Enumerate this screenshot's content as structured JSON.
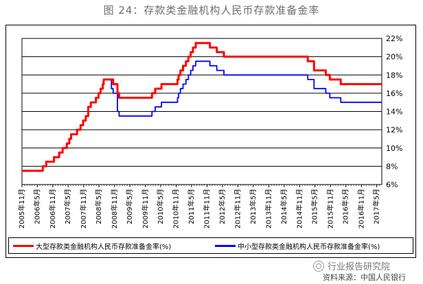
{
  "figure_title": "图 24：存款类金融机构人民币存款准备金率",
  "source_note": "资料来源：中国人民银行",
  "watermark": "行业报告研究院",
  "chart_data": {
    "type": "line",
    "xlabel": "",
    "ylabel": "",
    "ylim": [
      6,
      22
    ],
    "yticks": [
      "6%",
      "8%",
      "10%",
      "12%",
      "14%",
      "16%",
      "18%",
      "20%",
      "22%"
    ],
    "xticks": [
      "2005年11月",
      "2006年5月",
      "2006年11月",
      "2007年5月",
      "2007年11月",
      "2008年5月",
      "2008年11月",
      "2009年5月",
      "2009年11月",
      "2010年5月",
      "2010年11月",
      "2011年5月",
      "2011年11月",
      "2012年5月",
      "2012年11月",
      "2013年5月",
      "2013年11月",
      "2014年5月",
      "2014年11月",
      "2015年5月",
      "2015年11月",
      "2016年5月",
      "2016年11月",
      "2017年5月"
    ],
    "grid": true,
    "legend_position": "bottom",
    "series": [
      {
        "name": "大型存款类金融机构人民币存款准备金率(%)",
        "color": "#ff0000",
        "points": [
          [
            "2005-11-01",
            7.5
          ],
          [
            "2006-07-05",
            8.0
          ],
          [
            "2006-08-15",
            8.5
          ],
          [
            "2006-11-15",
            9.0
          ],
          [
            "2007-01-15",
            9.5
          ],
          [
            "2007-02-25",
            10.0
          ],
          [
            "2007-04-16",
            10.5
          ],
          [
            "2007-05-15",
            11.0
          ],
          [
            "2007-06-05",
            11.5
          ],
          [
            "2007-08-15",
            12.0
          ],
          [
            "2007-09-25",
            12.5
          ],
          [
            "2007-10-25",
            13.0
          ],
          [
            "2007-11-26",
            13.5
          ],
          [
            "2007-12-25",
            14.5
          ],
          [
            "2008-01-25",
            15.0
          ],
          [
            "2008-03-25",
            15.5
          ],
          [
            "2008-04-25",
            16.0
          ],
          [
            "2008-05-20",
            16.5
          ],
          [
            "2008-06-15",
            17.0
          ],
          [
            "2008-06-25",
            17.5
          ],
          [
            "2008-10-15",
            17.0
          ],
          [
            "2008-12-05",
            16.0
          ],
          [
            "2008-12-25",
            15.5
          ],
          [
            "2010-01-18",
            16.0
          ],
          [
            "2010-02-25",
            16.5
          ],
          [
            "2010-05-10",
            17.0
          ],
          [
            "2010-11-16",
            17.5
          ],
          [
            "2010-11-29",
            18.0
          ],
          [
            "2010-12-20",
            18.5
          ],
          [
            "2011-01-20",
            19.0
          ],
          [
            "2011-02-24",
            19.5
          ],
          [
            "2011-03-25",
            20.0
          ],
          [
            "2011-04-21",
            20.5
          ],
          [
            "2011-05-18",
            21.0
          ],
          [
            "2011-06-20",
            21.5
          ],
          [
            "2011-12-05",
            21.0
          ],
          [
            "2012-02-24",
            20.5
          ],
          [
            "2012-05-18",
            20.0
          ],
          [
            "2015-02-05",
            19.5
          ],
          [
            "2015-04-20",
            18.5
          ],
          [
            "2015-09-06",
            18.0
          ],
          [
            "2015-10-24",
            17.5
          ],
          [
            "2016-03-01",
            17.0
          ],
          [
            "2017-06-30",
            17.0
          ]
        ]
      },
      {
        "name": "中小型存款类金融机构人民币存款准备金率(%)",
        "color": "#0000ff",
        "points": [
          [
            "2005-11-01",
            7.5
          ],
          [
            "2006-07-05",
            8.0
          ],
          [
            "2006-08-15",
            8.5
          ],
          [
            "2006-11-15",
            9.0
          ],
          [
            "2007-01-15",
            9.5
          ],
          [
            "2007-02-25",
            10.0
          ],
          [
            "2007-04-16",
            10.5
          ],
          [
            "2007-05-15",
            11.0
          ],
          [
            "2007-06-05",
            11.5
          ],
          [
            "2007-08-15",
            12.0
          ],
          [
            "2007-09-25",
            12.5
          ],
          [
            "2007-10-25",
            13.0
          ],
          [
            "2007-11-26",
            13.5
          ],
          [
            "2007-12-25",
            14.5
          ],
          [
            "2008-01-25",
            15.0
          ],
          [
            "2008-03-25",
            15.5
          ],
          [
            "2008-04-25",
            16.0
          ],
          [
            "2008-05-20",
            16.5
          ],
          [
            "2008-06-15",
            17.0
          ],
          [
            "2008-06-25",
            17.5
          ],
          [
            "2008-09-25",
            16.5
          ],
          [
            "2008-10-15",
            16.0
          ],
          [
            "2008-12-05",
            14.0
          ],
          [
            "2008-12-25",
            13.5
          ],
          [
            "2010-01-18",
            14.0
          ],
          [
            "2010-02-25",
            14.5
          ],
          [
            "2010-05-10",
            15.0
          ],
          [
            "2010-11-16",
            15.5
          ],
          [
            "2010-11-29",
            16.0
          ],
          [
            "2010-12-20",
            16.5
          ],
          [
            "2011-01-20",
            17.0
          ],
          [
            "2011-02-24",
            17.5
          ],
          [
            "2011-03-25",
            18.0
          ],
          [
            "2011-04-21",
            18.5
          ],
          [
            "2011-05-18",
            19.0
          ],
          [
            "2011-06-20",
            19.5
          ],
          [
            "2011-12-05",
            19.0
          ],
          [
            "2012-02-24",
            18.5
          ],
          [
            "2012-05-18",
            18.0
          ],
          [
            "2014-04-25",
            18.0
          ],
          [
            "2015-02-05",
            17.5
          ],
          [
            "2015-04-20",
            16.5
          ],
          [
            "2015-09-06",
            16.0
          ],
          [
            "2015-10-24",
            15.5
          ],
          [
            "2016-03-01",
            15.0
          ],
          [
            "2017-06-30",
            15.0
          ]
        ]
      }
    ]
  }
}
